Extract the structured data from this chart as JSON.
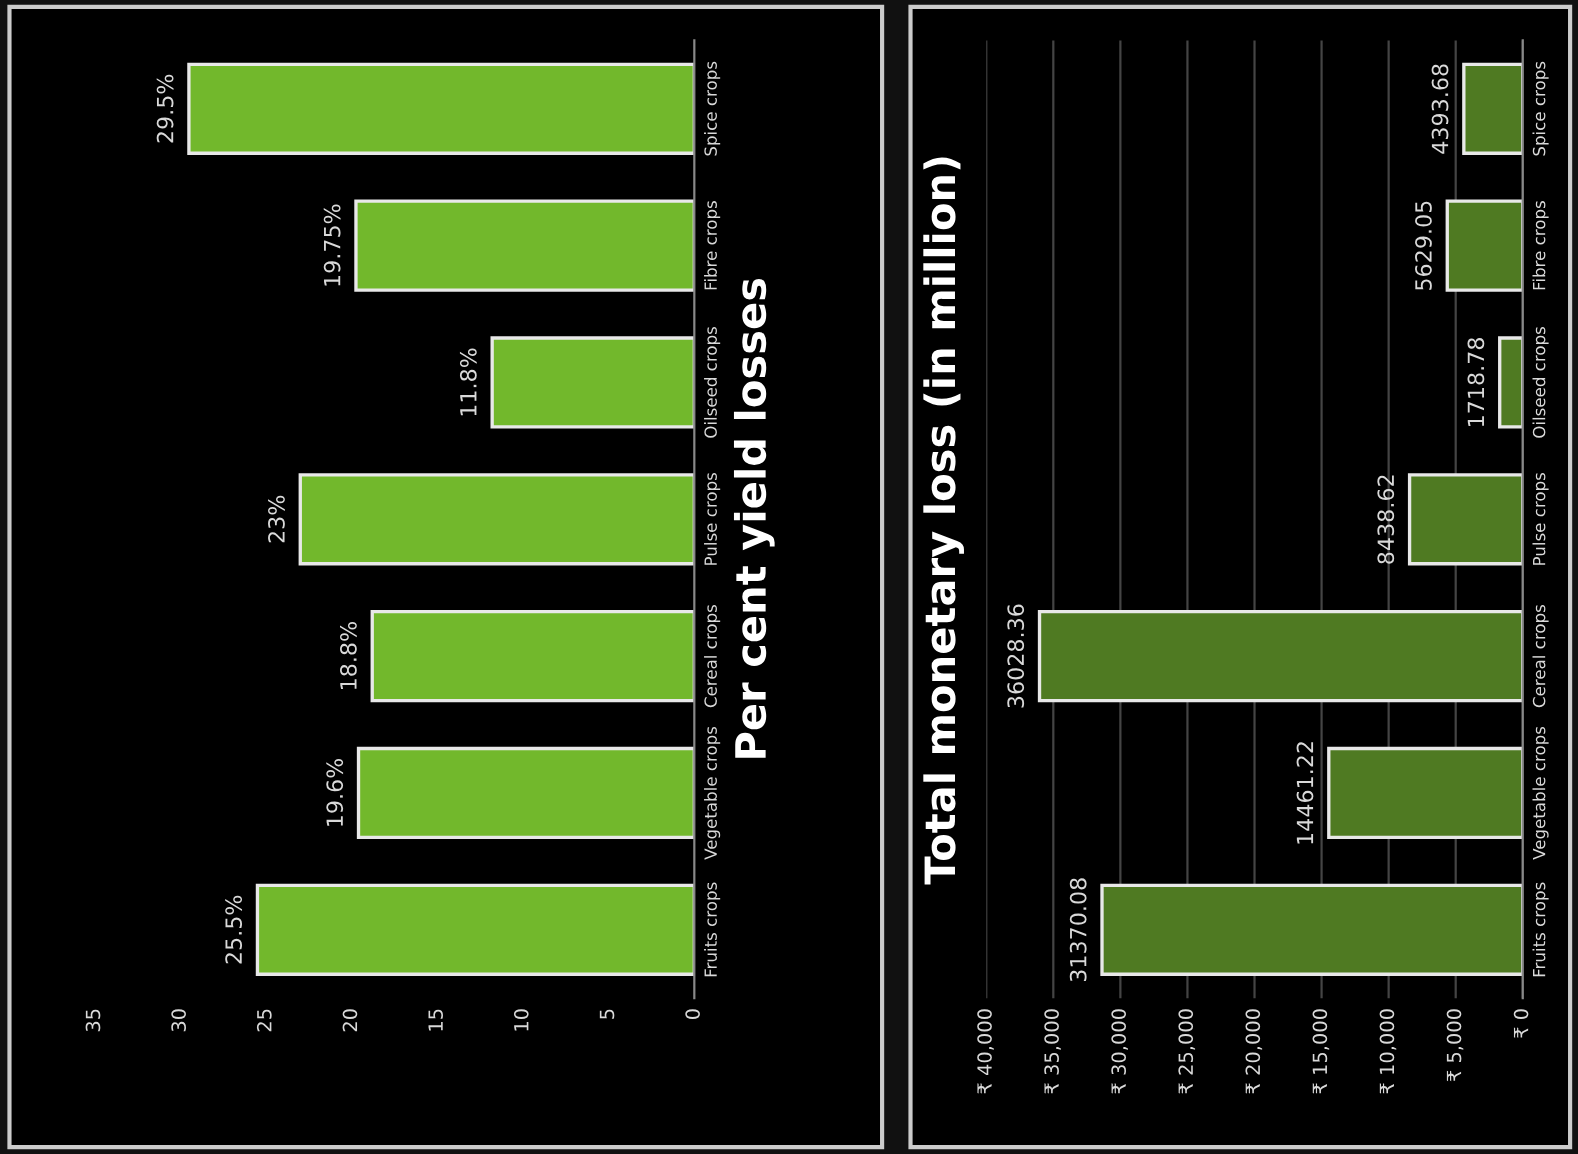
{
  "chart_data": [
    {
      "type": "bar",
      "orientation": "horizontal",
      "title": "Per cent yield losses",
      "categories": [
        "Spice crops",
        "Fibre crops",
        "Oilseed crops",
        "Pulse crops",
        "Cereal crops",
        "Vegetable crops",
        "Fruits crops"
      ],
      "values": [
        29.5,
        19.75,
        11.8,
        23,
        18.8,
        19.6,
        25.5
      ],
      "value_labels": [
        "29.5%",
        "19.75%",
        "11.8%",
        "23%",
        "18.8%",
        "19.6%",
        "25.5%"
      ],
      "color": "#72b82c",
      "xlim": [
        35,
        0
      ],
      "xticks": [
        35,
        30,
        25,
        20,
        15,
        10,
        5,
        0
      ],
      "grid": false
    },
    {
      "type": "bar",
      "orientation": "horizontal",
      "title": "Total monetary loss (in million)",
      "categories": [
        "Spice crops",
        "Fibre crops",
        "Oilseed crops",
        "Pulse crops",
        "Cereal crops",
        "Vegetable crops",
        "Fruits crops"
      ],
      "values": [
        4393.68,
        5629.05,
        1718.78,
        8438.62,
        36028.36,
        14461.22,
        31370.08
      ],
      "data_labels": true,
      "color": "#4f7a22",
      "xlim": [
        40000,
        0
      ],
      "xticks": [
        {
          "value": 40000,
          "label": "₹ 40,000"
        },
        {
          "value": 35000,
          "label": "₹ 35,000"
        },
        {
          "value": 30000,
          "label": "₹ 30,000"
        },
        {
          "value": 25000,
          "label": "₹ 25,000"
        },
        {
          "value": 20000,
          "label": "₹ 20,000"
        },
        {
          "value": 15000,
          "label": "₹ 15,000"
        },
        {
          "value": 10000,
          "label": "₹ 10,000"
        },
        {
          "value": 5000,
          "label": "₹ 5,000"
        },
        {
          "value": 0,
          "label": "₹ 0"
        }
      ],
      "grid": "x"
    }
  ]
}
